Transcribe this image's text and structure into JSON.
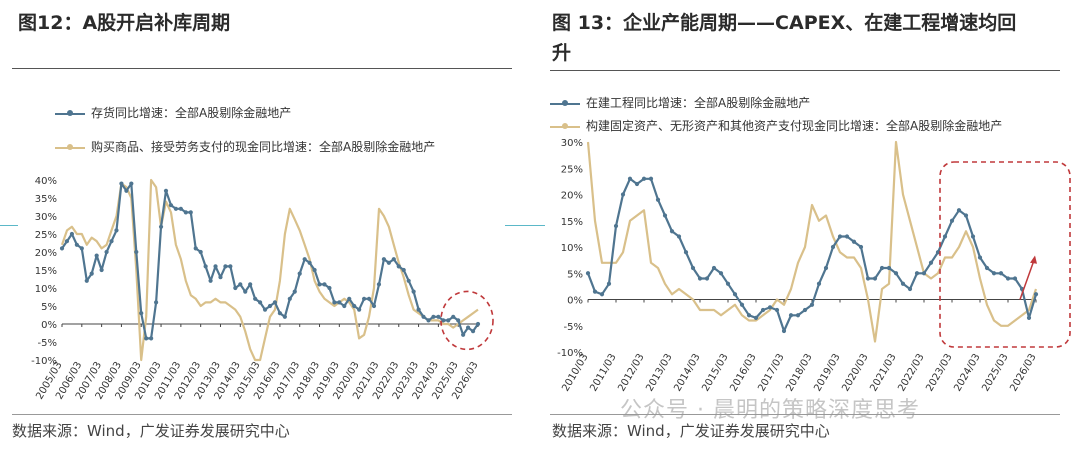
{
  "left_panel": {
    "title": "图12：A股开启补库周期",
    "source": "数据来源：Wind，广发证券发展研究中心"
  },
  "right_panel": {
    "title_line1": "图 13：企业产能周期——CAPEX、在建工程增速均回",
    "title_line2": "升",
    "source": "数据来源：Wind，广发证券发展研究中心"
  },
  "watermark": "公众号 · 晨明的策略深度思考",
  "colors": {
    "blue": "#4f7590",
    "gold": "#d9c08a",
    "highlight": "#c0393b"
  },
  "chart_data": [
    {
      "type": "line",
      "title": "图12：A股开启补库周期",
      "ylim": [
        -0.1,
        0.4
      ],
      "yticks": [
        "-10%",
        "-5%",
        "0%",
        "5%",
        "10%",
        "15%",
        "20%",
        "25%",
        "30%",
        "35%",
        "40%"
      ],
      "x_start": 2005.17,
      "x_end": 2026.17,
      "xticks": [
        "2005/03",
        "2006/03",
        "2007/03",
        "2008/03",
        "2009/03",
        "2010/03",
        "2011/03",
        "2012/03",
        "2013/03",
        "2014/03",
        "2015/03",
        "2016/03",
        "2017/03",
        "2018/03",
        "2019/03",
        "2020/03",
        "2021/03",
        "2022/03",
        "2023/03",
        "2024/03",
        "2025/03",
        "2026/03"
      ],
      "legend_position": "top-left",
      "series": [
        {
          "name": "存货同比增速：全部A股剔除金融地产",
          "color": "#4f7590",
          "marker": true,
          "x": [
            2005.17,
            2005.42,
            2005.67,
            2005.92,
            2006.17,
            2006.42,
            2006.67,
            2006.92,
            2007.17,
            2007.42,
            2007.67,
            2007.92,
            2008.17,
            2008.42,
            2008.67,
            2008.92,
            2009.17,
            2009.42,
            2009.67,
            2009.92,
            2010.17,
            2010.42,
            2010.67,
            2010.92,
            2011.17,
            2011.42,
            2011.67,
            2011.92,
            2012.17,
            2012.42,
            2012.67,
            2012.92,
            2013.17,
            2013.42,
            2013.67,
            2013.92,
            2014.17,
            2014.42,
            2014.67,
            2014.92,
            2015.17,
            2015.42,
            2015.67,
            2015.92,
            2016.17,
            2016.42,
            2016.67,
            2016.92,
            2017.17,
            2017.42,
            2017.67,
            2017.92,
            2018.17,
            2018.42,
            2018.67,
            2018.92,
            2019.17,
            2019.42,
            2019.67,
            2019.92,
            2020.17,
            2020.42,
            2020.67,
            2020.92,
            2021.17,
            2021.42,
            2021.67,
            2021.92,
            2022.17,
            2022.42,
            2022.67,
            2022.92,
            2023.17,
            2023.42,
            2023.67,
            2023.92,
            2024.17,
            2024.42,
            2024.67,
            2024.92,
            2025.17,
            2025.42,
            2025.67,
            2025.92,
            2026.17
          ],
          "values": [
            0.21,
            0.23,
            0.25,
            0.22,
            0.21,
            0.12,
            0.14,
            0.19,
            0.15,
            0.2,
            0.23,
            0.26,
            0.39,
            0.37,
            0.39,
            0.2,
            0.03,
            -0.04,
            -0.04,
            0.06,
            0.27,
            0.37,
            0.33,
            0.32,
            0.32,
            0.31,
            0.31,
            0.21,
            0.2,
            0.16,
            0.12,
            0.16,
            0.13,
            0.16,
            0.16,
            0.1,
            0.11,
            0.09,
            0.11,
            0.07,
            0.06,
            0.04,
            0.05,
            0.06,
            0.03,
            0.02,
            0.07,
            0.09,
            0.14,
            0.18,
            0.17,
            0.15,
            0.11,
            0.11,
            0.1,
            0.06,
            0.06,
            0.05,
            0.07,
            0.05,
            0.04,
            0.07,
            0.07,
            0.05,
            0.11,
            0.18,
            0.17,
            0.18,
            0.16,
            0.15,
            0.12,
            0.09,
            0.04,
            0.02,
            0.01,
            0.02,
            0.02,
            0.01,
            0.01,
            0.02,
            0.01,
            -0.03,
            -0.01,
            -0.02,
            0.0
          ]
        },
        {
          "name": "购买商品、接受劳务支付的现金同比增速：全部A股剔除金融地产",
          "color": "#d9c08a",
          "marker": false,
          "x": [
            2005.17,
            2005.42,
            2005.67,
            2005.92,
            2006.17,
            2006.42,
            2006.67,
            2006.92,
            2007.17,
            2007.42,
            2007.67,
            2007.92,
            2008.17,
            2008.42,
            2008.67,
            2008.92,
            2009.17,
            2009.42,
            2009.67,
            2009.92,
            2010.17,
            2010.42,
            2010.67,
            2010.92,
            2011.17,
            2011.42,
            2011.67,
            2011.92,
            2012.17,
            2012.42,
            2012.67,
            2012.92,
            2013.17,
            2013.42,
            2013.67,
            2013.92,
            2014.17,
            2014.42,
            2014.67,
            2014.92,
            2015.17,
            2015.42,
            2015.67,
            2015.92,
            2016.17,
            2016.42,
            2016.67,
            2016.92,
            2017.17,
            2017.42,
            2017.67,
            2017.92,
            2018.17,
            2018.42,
            2018.67,
            2018.92,
            2019.17,
            2019.42,
            2019.67,
            2019.92,
            2020.17,
            2020.42,
            2020.67,
            2020.92,
            2021.17,
            2021.42,
            2021.67,
            2021.92,
            2022.17,
            2022.42,
            2022.67,
            2022.92,
            2023.17,
            2023.42,
            2023.67,
            2023.92,
            2024.17,
            2024.42,
            2024.67,
            2024.92,
            2025.17,
            2025.42,
            2025.67,
            2025.92,
            2026.17
          ],
          "values": [
            0.22,
            0.26,
            0.27,
            0.25,
            0.25,
            0.22,
            0.24,
            0.23,
            0.21,
            0.22,
            0.26,
            0.3,
            0.39,
            0.38,
            0.35,
            0.15,
            -0.1,
            0.02,
            0.4,
            0.38,
            0.27,
            0.34,
            0.31,
            0.22,
            0.18,
            0.12,
            0.08,
            0.07,
            0.05,
            0.06,
            0.06,
            0.07,
            0.06,
            0.06,
            0.05,
            0.04,
            0.02,
            -0.02,
            -0.07,
            -0.1,
            -0.1,
            -0.04,
            0.02,
            0.04,
            0.12,
            0.25,
            0.32,
            0.29,
            0.26,
            0.22,
            0.18,
            0.12,
            0.09,
            0.07,
            0.06,
            0.05,
            0.06,
            0.07,
            0.06,
            0.04,
            -0.04,
            -0.03,
            0.02,
            0.1,
            0.32,
            0.3,
            0.27,
            0.22,
            0.17,
            0.13,
            0.08,
            0.04,
            0.03,
            0.02,
            0.01,
            0.01,
            0.01,
            0.0,
            0.0,
            -0.01,
            0.0,
            0.01,
            0.02,
            0.03,
            0.04
          ]
        }
      ]
    },
    {
      "type": "line",
      "title": "图 13：企业产能周期——CAPEX、在建工程增速均回升",
      "ylim": [
        -0.1,
        0.3
      ],
      "yticks": [
        "-10%",
        "-5%",
        "0%",
        "5%",
        "10%",
        "15%",
        "20%",
        "25%",
        "30%"
      ],
      "x_start": 2010.17,
      "x_end": 2026.17,
      "xticks": [
        "2010/03",
        "2011/03",
        "2012/03",
        "2013/03",
        "2014/03",
        "2015/03",
        "2016/03",
        "2017/03",
        "2018/03",
        "2019/03",
        "2020/03",
        "2021/03",
        "2022/03",
        "2023/03",
        "2024/03",
        "2025/03",
        "2026/03"
      ],
      "legend_position": "top-left",
      "series": [
        {
          "name": "在建工程同比增速：全部A股剔除金融地产",
          "color": "#4f7590",
          "marker": true,
          "x": [
            2010.17,
            2010.42,
            2010.67,
            2010.92,
            2011.17,
            2011.42,
            2011.67,
            2011.92,
            2012.17,
            2012.42,
            2012.67,
            2012.92,
            2013.17,
            2013.42,
            2013.67,
            2013.92,
            2014.17,
            2014.42,
            2014.67,
            2014.92,
            2015.17,
            2015.42,
            2015.67,
            2015.92,
            2016.17,
            2016.42,
            2016.67,
            2016.92,
            2017.17,
            2017.42,
            2017.67,
            2017.92,
            2018.17,
            2018.42,
            2018.67,
            2018.92,
            2019.17,
            2019.42,
            2019.67,
            2019.92,
            2020.17,
            2020.42,
            2020.67,
            2020.92,
            2021.17,
            2021.42,
            2021.67,
            2021.92,
            2022.17,
            2022.42,
            2022.67,
            2022.92,
            2023.17,
            2023.42,
            2023.67,
            2023.92,
            2024.17,
            2024.42,
            2024.67,
            2024.92,
            2025.17,
            2025.42,
            2025.67,
            2025.92,
            2026.17
          ],
          "values": [
            0.05,
            0.015,
            0.01,
            0.03,
            0.14,
            0.2,
            0.23,
            0.22,
            0.23,
            0.23,
            0.19,
            0.16,
            0.13,
            0.12,
            0.09,
            0.06,
            0.04,
            0.04,
            0.06,
            0.05,
            0.03,
            0.01,
            -0.01,
            -0.03,
            -0.035,
            -0.02,
            -0.015,
            -0.02,
            -0.06,
            -0.03,
            -0.03,
            -0.02,
            -0.01,
            0.03,
            0.06,
            0.1,
            0.12,
            0.12,
            0.11,
            0.1,
            0.04,
            0.04,
            0.06,
            0.06,
            0.05,
            0.03,
            0.02,
            0.05,
            0.05,
            0.07,
            0.09,
            0.12,
            0.15,
            0.17,
            0.16,
            0.12,
            0.08,
            0.06,
            0.05,
            0.05,
            0.04,
            0.04,
            0.02,
            -0.035,
            0.01
          ]
        },
        {
          "name": "构建固定资产、无形资产和其他资产支付现金同比增速：全部A股剔除金融地产",
          "color": "#d9c08a",
          "marker": false,
          "x": [
            2010.17,
            2010.42,
            2010.67,
            2010.92,
            2011.17,
            2011.42,
            2011.67,
            2011.92,
            2012.17,
            2012.42,
            2012.67,
            2012.92,
            2013.17,
            2013.42,
            2013.67,
            2013.92,
            2014.17,
            2014.42,
            2014.67,
            2014.92,
            2015.17,
            2015.42,
            2015.67,
            2015.92,
            2016.17,
            2016.42,
            2016.67,
            2016.92,
            2017.17,
            2017.42,
            2017.67,
            2017.92,
            2018.17,
            2018.42,
            2018.67,
            2018.92,
            2019.17,
            2019.42,
            2019.67,
            2019.92,
            2020.17,
            2020.42,
            2020.67,
            2020.92,
            2021.17,
            2021.42,
            2021.67,
            2021.92,
            2022.17,
            2022.42,
            2022.67,
            2022.92,
            2023.17,
            2023.42,
            2023.67,
            2023.92,
            2024.17,
            2024.42,
            2024.67,
            2024.92,
            2025.17,
            2025.42,
            2025.67,
            2025.92,
            2026.17
          ],
          "values": [
            0.3,
            0.15,
            0.07,
            0.07,
            0.07,
            0.09,
            0.15,
            0.16,
            0.17,
            0.07,
            0.06,
            0.03,
            0.01,
            0.02,
            0.01,
            0.0,
            -0.02,
            -0.02,
            -0.02,
            -0.03,
            -0.02,
            -0.01,
            -0.03,
            -0.04,
            -0.04,
            -0.03,
            -0.02,
            0.0,
            -0.01,
            0.02,
            0.07,
            0.1,
            0.18,
            0.15,
            0.16,
            0.12,
            0.09,
            0.08,
            0.08,
            0.06,
            0.0,
            -0.08,
            0.02,
            0.03,
            0.3,
            0.2,
            0.15,
            0.1,
            0.05,
            0.04,
            0.05,
            0.08,
            0.08,
            0.1,
            0.13,
            0.1,
            0.04,
            -0.01,
            -0.04,
            -0.05,
            -0.05,
            -0.04,
            -0.03,
            -0.02,
            0.02
          ]
        }
      ]
    }
  ]
}
